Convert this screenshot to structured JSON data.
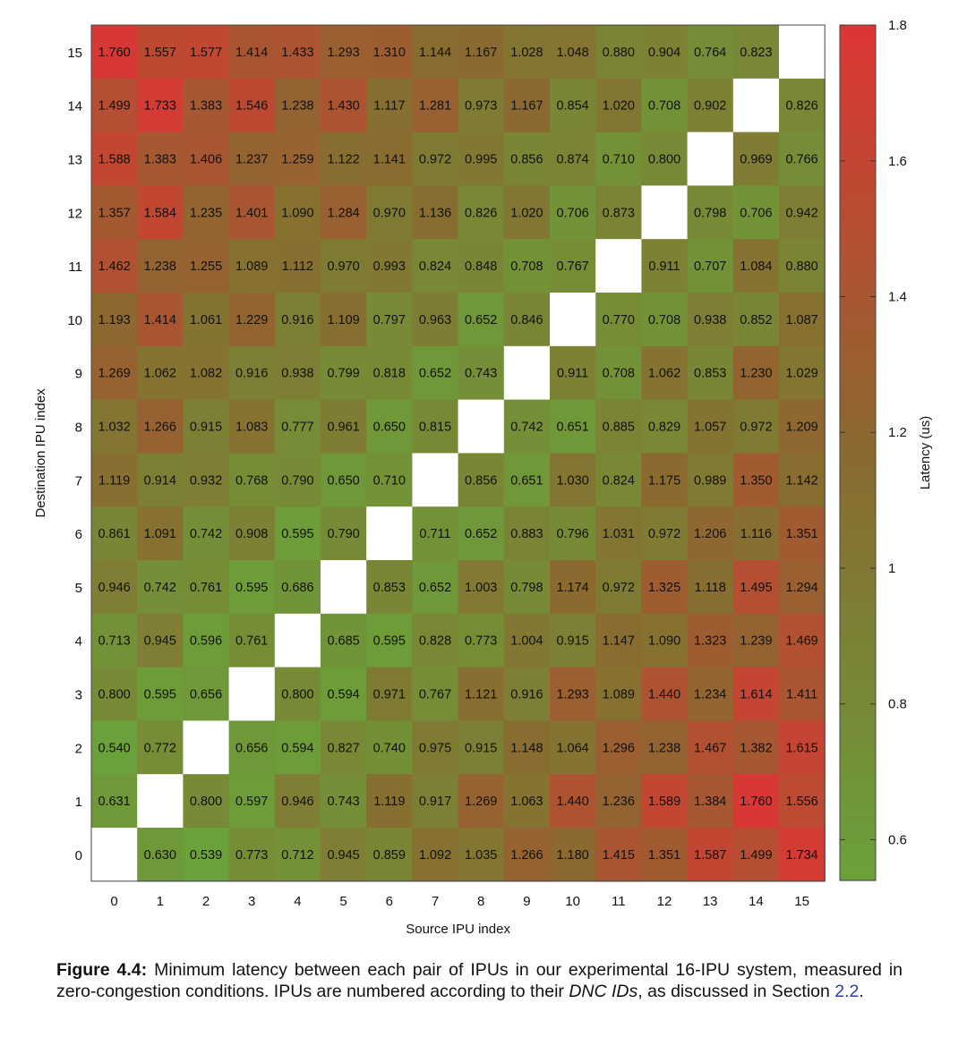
{
  "chart_data": {
    "type": "heatmap",
    "xlabel": "Source IPU index",
    "ylabel": "Destination IPU index",
    "colorbar_label": "Latency (us)",
    "colorbar_range": [
      0.54,
      1.8
    ],
    "colorbar_ticks": [
      "0.6",
      "0.8",
      "1",
      "1.2",
      "1.4",
      "1.6",
      "1.8"
    ],
    "colorbar_tick_values": [
      0.6,
      0.8,
      1.0,
      1.2,
      1.4,
      1.6,
      1.8
    ],
    "x_ticks": [
      "0",
      "1",
      "2",
      "3",
      "4",
      "5",
      "6",
      "7",
      "8",
      "9",
      "10",
      "11",
      "12",
      "13",
      "14",
      "15"
    ],
    "y_ticks": [
      "0",
      "1",
      "2",
      "3",
      "4",
      "5",
      "6",
      "7",
      "8",
      "9",
      "10",
      "11",
      "12",
      "13",
      "14",
      "15"
    ],
    "diagonal": "blank",
    "rows": [
      {
        "dest": "15",
        "values": [
          "1.760",
          "1.557",
          "1.577",
          "1.414",
          "1.433",
          "1.293",
          "1.310",
          "1.144",
          "1.167",
          "1.028",
          "1.048",
          "0.880",
          "0.904",
          "0.764",
          "0.823",
          ""
        ]
      },
      {
        "dest": "14",
        "values": [
          "1.499",
          "1.733",
          "1.383",
          "1.546",
          "1.238",
          "1.430",
          "1.117",
          "1.281",
          "0.973",
          "1.167",
          "0.854",
          "1.020",
          "0.708",
          "0.902",
          "",
          "0.826"
        ]
      },
      {
        "dest": "13",
        "values": [
          "1.588",
          "1.383",
          "1.406",
          "1.237",
          "1.259",
          "1.122",
          "1.141",
          "0.972",
          "0.995",
          "0.856",
          "0.874",
          "0.710",
          "0.800",
          "",
          "0.969",
          "0.766"
        ]
      },
      {
        "dest": "12",
        "values": [
          "1.357",
          "1.584",
          "1.235",
          "1.401",
          "1.090",
          "1.284",
          "0.970",
          "1.136",
          "0.826",
          "1.020",
          "0.706",
          "0.873",
          "",
          "0.798",
          "0.706",
          "0.942"
        ]
      },
      {
        "dest": "11",
        "values": [
          "1.462",
          "1.238",
          "1.255",
          "1.089",
          "1.112",
          "0.970",
          "0.993",
          "0.824",
          "0.848",
          "0.708",
          "0.767",
          "",
          "0.911",
          "0.707",
          "1.084",
          "0.880"
        ]
      },
      {
        "dest": "10",
        "values": [
          "1.193",
          "1.414",
          "1.061",
          "1.229",
          "0.916",
          "1.109",
          "0.797",
          "0.963",
          "0.652",
          "0.846",
          "",
          "0.770",
          "0.708",
          "0.938",
          "0.852",
          "1.087"
        ]
      },
      {
        "dest": "9",
        "values": [
          "1.269",
          "1.062",
          "1.082",
          "0.916",
          "0.938",
          "0.799",
          "0.818",
          "0.652",
          "0.743",
          "",
          "0.911",
          "0.708",
          "1.062",
          "0.853",
          "1.230",
          "1.029"
        ]
      },
      {
        "dest": "8",
        "values": [
          "1.032",
          "1.266",
          "0.915",
          "1.083",
          "0.777",
          "0.961",
          "0.650",
          "0.815",
          "",
          "0.742",
          "0.651",
          "0.885",
          "0.829",
          "1.057",
          "0.972",
          "1.209"
        ]
      },
      {
        "dest": "7",
        "values": [
          "1.119",
          "0.914",
          "0.932",
          "0.768",
          "0.790",
          "0.650",
          "0.710",
          "",
          "0.856",
          "0.651",
          "1.030",
          "0.824",
          "1.175",
          "0.989",
          "1.350",
          "1.142"
        ]
      },
      {
        "dest": "6",
        "values": [
          "0.861",
          "1.091",
          "0.742",
          "0.908",
          "0.595",
          "0.790",
          "",
          "0.711",
          "0.652",
          "0.883",
          "0.796",
          "1.031",
          "0.972",
          "1.206",
          "1.116",
          "1.351"
        ]
      },
      {
        "dest": "5",
        "values": [
          "0.946",
          "0.742",
          "0.761",
          "0.595",
          "0.686",
          "",
          "0.853",
          "0.652",
          "1.003",
          "0.798",
          "1.174",
          "0.972",
          "1.325",
          "1.118",
          "1.495",
          "1.294"
        ]
      },
      {
        "dest": "4",
        "values": [
          "0.713",
          "0.945",
          "0.596",
          "0.761",
          "",
          "0.685",
          "0.595",
          "0.828",
          "0.773",
          "1.004",
          "0.915",
          "1.147",
          "1.090",
          "1.323",
          "1.239",
          "1.469"
        ]
      },
      {
        "dest": "3",
        "values": [
          "0.800",
          "0.595",
          "0.656",
          "",
          "0.800",
          "0.594",
          "0.971",
          "0.767",
          "1.121",
          "0.916",
          "1.293",
          "1.089",
          "1.440",
          "1.234",
          "1.614",
          "1.411"
        ]
      },
      {
        "dest": "2",
        "values": [
          "0.540",
          "0.772",
          "",
          "0.656",
          "0.594",
          "0.827",
          "0.740",
          "0.975",
          "0.915",
          "1.148",
          "1.064",
          "1.296",
          "1.238",
          "1.467",
          "1.382",
          "1.615"
        ]
      },
      {
        "dest": "1",
        "values": [
          "0.631",
          "",
          "0.800",
          "0.597",
          "0.946",
          "0.743",
          "1.119",
          "0.917",
          "1.269",
          "1.063",
          "1.440",
          "1.236",
          "1.589",
          "1.384",
          "1.760",
          "1.556"
        ]
      },
      {
        "dest": "0",
        "values": [
          "",
          "0.630",
          "0.539",
          "0.773",
          "0.712",
          "0.945",
          "0.859",
          "1.092",
          "1.035",
          "1.266",
          "1.180",
          "1.415",
          "1.351",
          "1.587",
          "1.499",
          "1.734"
        ]
      }
    ]
  },
  "colors": {
    "low": "#6aa13a",
    "high": "#dd3535",
    "mid_dark": "#8a6a30",
    "caption_ref": "#2a3bb0"
  },
  "caption": {
    "label": "Figure 4.4:",
    "text_part1": " Minimum latency between each pair of IPUs in our experimental 16-IPU system, measured in zero-congestion conditions.  IPUs are numbered according to their ",
    "emphasis": "DNC IDs",
    "text_part2": ", as discussed in Section ",
    "section_ref": "2.2",
    "text_end": "."
  }
}
